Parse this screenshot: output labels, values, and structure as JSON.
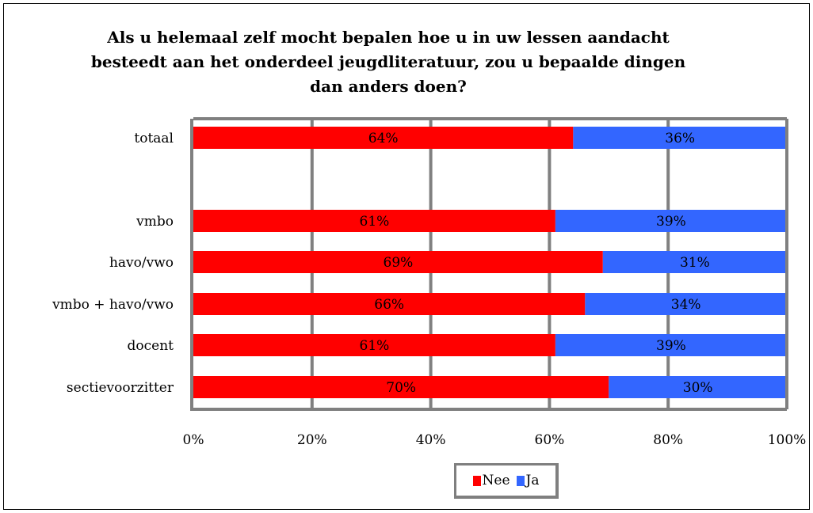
{
  "chart_data": {
    "type": "bar",
    "orientation": "horizontal",
    "stacked": true,
    "title": "Als u helemaal zelf mocht bepalen hoe u in uw lessen aandacht besteedt aan het onderdeel jeugdliteratuur, zou u bepaalde dingen dan anders doen?",
    "categories": [
      "totaal",
      "",
      "vmbo",
      "havo/vwo",
      "vmbo + havo/vwo",
      "docent",
      "sectievoorzitter"
    ],
    "series": [
      {
        "name": "Nee",
        "color": "#ff0000",
        "values": [
          64,
          null,
          61,
          69,
          66,
          61,
          70
        ]
      },
      {
        "name": "Ja",
        "color": "#3366ff",
        "values": [
          36,
          null,
          39,
          31,
          34,
          39,
          30
        ]
      }
    ],
    "xlim": [
      0,
      100
    ],
    "x_ticks": [
      "0%",
      "20%",
      "40%",
      "60%",
      "80%",
      "100%"
    ],
    "grid": true,
    "legend_position": "bottom"
  }
}
